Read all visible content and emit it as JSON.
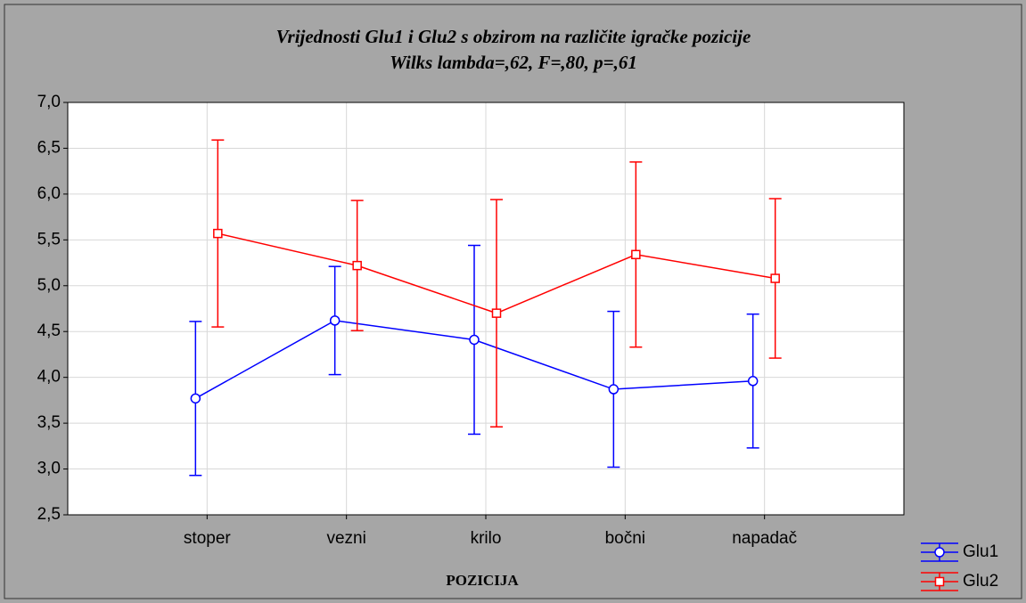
{
  "chart_data": {
    "type": "line",
    "title": "Vrijednosti Glu1 i Glu2 s obzirom na različite igračke pozicije",
    "subtitle": "Wilks lambda=,62, F=,80, p=,61",
    "x_label": "POZICIJA",
    "categories": [
      "stoper",
      "vezni",
      "krilo",
      "bočni",
      "napadač"
    ],
    "series": [
      {
        "name": "Glu1",
        "color": "#0000ff",
        "values": [
          3.77,
          4.62,
          4.41,
          3.87,
          3.96
        ],
        "errors": [
          0.84,
          0.59,
          1.03,
          0.85,
          0.73
        ]
      },
      {
        "name": "Glu2",
        "color": "#ff0000",
        "values": [
          5.57,
          5.22,
          4.7,
          5.34,
          5.08
        ],
        "errors": [
          1.02,
          0.71,
          1.24,
          1.01,
          0.87
        ]
      }
    ],
    "ylim": [
      2.5,
      7.0
    ],
    "yticks": [
      {
        "value": 2.5,
        "label": "2,5"
      },
      {
        "value": 3.0,
        "label": "3,0"
      },
      {
        "value": 3.5,
        "label": "3,5"
      },
      {
        "value": 4.0,
        "label": "4,0"
      },
      {
        "value": 4.5,
        "label": "4,5"
      },
      {
        "value": 5.0,
        "label": "5,0"
      },
      {
        "value": 5.5,
        "label": "5,5"
      },
      {
        "value": 6.0,
        "label": "6,0"
      },
      {
        "value": 6.5,
        "label": "6,5"
      },
      {
        "value": 7.0,
        "label": "7,0"
      }
    ],
    "grid": true,
    "legend": "bottom-right"
  }
}
